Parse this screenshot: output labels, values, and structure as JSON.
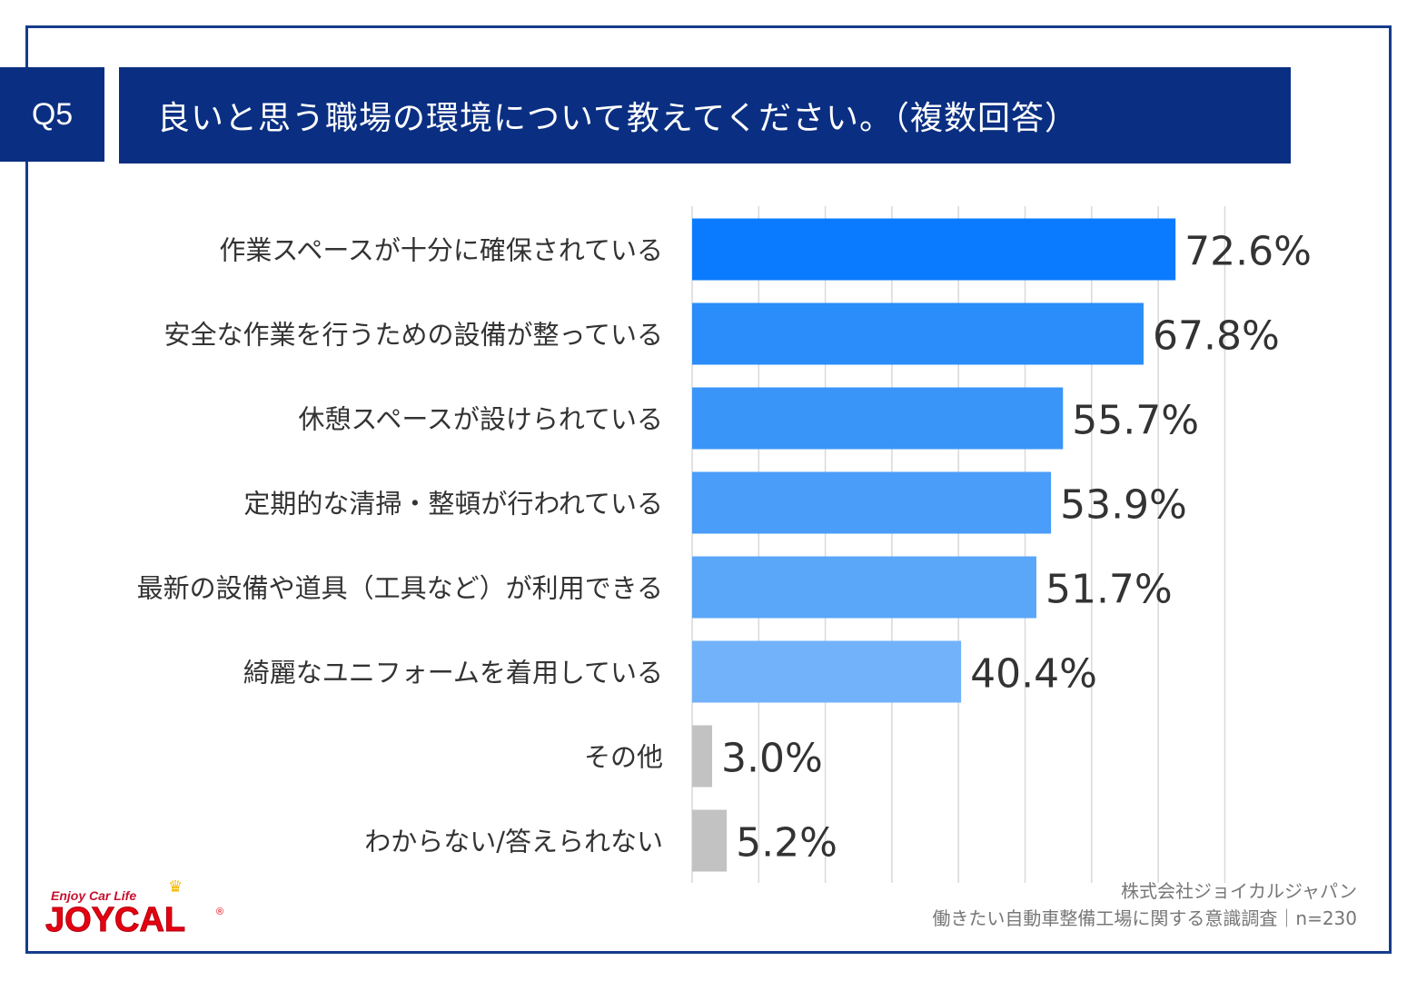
{
  "question": {
    "badge": "Q5",
    "title": "良いと思う職場の環境について教えてください。（複数回答）"
  },
  "chart_data": {
    "type": "bar",
    "orientation": "horizontal",
    "categories": [
      "作業スペースが十分に確保されている",
      "安全な作業を行うための設備が整っている",
      "休憩スペースが設けられている",
      "定期的な清掃・整頓が行われている",
      "最新の設備や道具（工具など）が利用できる",
      "綺麗なユニフォームを着用している",
      "その他",
      "わからない/答えられない"
    ],
    "values": [
      72.6,
      67.8,
      55.7,
      53.9,
      51.7,
      40.4,
      3.0,
      5.2
    ],
    "labels": [
      "72.6%",
      "67.8%",
      "55.7%",
      "53.9%",
      "51.7%",
      "40.4%",
      "3.0%",
      "5.2%"
    ],
    "colors": [
      "#0a7bff",
      "#2a8df9",
      "#3a95f8",
      "#4a9df8",
      "#5aa6f9",
      "#72b2fa",
      "#c2c2c2",
      "#c2c2c2"
    ],
    "xlim": [
      0,
      100
    ],
    "grid": true
  },
  "brand": {
    "tagline": "Enjoy Car Life",
    "name": "JOYCAL",
    "registered": "®",
    "crown": "♛"
  },
  "source": {
    "company": "株式会社ジョイカルジャパン",
    "survey": "働きたい自動車整備工場に関する意識調査｜n=230"
  }
}
